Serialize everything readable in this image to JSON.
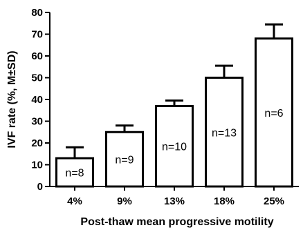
{
  "chart_data": {
    "type": "bar",
    "title": "",
    "xlabel": "Post-thaw mean progressive motility",
    "ylabel": "IVF rate (%, M±SD)",
    "ylim": [
      0,
      80
    ],
    "yticks": [
      0,
      10,
      20,
      30,
      40,
      50,
      60,
      70,
      80
    ],
    "categories": [
      "4%",
      "9%",
      "13%",
      "18%",
      "25%"
    ],
    "values": [
      13,
      25,
      37,
      50,
      68
    ],
    "errors": [
      5,
      3,
      2.5,
      5.5,
      6.5
    ],
    "bar_labels": [
      "n=8",
      "n=9",
      "n=10",
      "n=13",
      "n=6"
    ],
    "grid": false,
    "legend": "none",
    "colors": {
      "bar_fill": "#ffffff",
      "bar_stroke": "#000000",
      "axis": "#000000"
    }
  }
}
